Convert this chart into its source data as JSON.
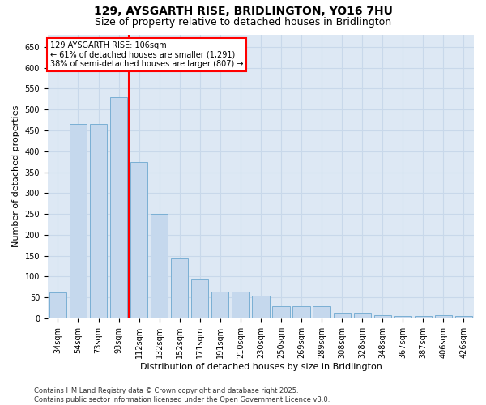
{
  "title1": "129, AYSGARTH RISE, BRIDLINGTON, YO16 7HU",
  "title2": "Size of property relative to detached houses in Bridlington",
  "xlabel": "Distribution of detached houses by size in Bridlington",
  "ylabel": "Number of detached properties",
  "categories": [
    "34sqm",
    "54sqm",
    "73sqm",
    "93sqm",
    "112sqm",
    "132sqm",
    "152sqm",
    "171sqm",
    "191sqm",
    "210sqm",
    "230sqm",
    "250sqm",
    "269sqm",
    "289sqm",
    "308sqm",
    "328sqm",
    "348sqm",
    "367sqm",
    "387sqm",
    "406sqm",
    "426sqm"
  ],
  "values": [
    62,
    465,
    465,
    530,
    375,
    250,
    143,
    93,
    63,
    63,
    55,
    28,
    28,
    28,
    11,
    11,
    8,
    6,
    5,
    8,
    5
  ],
  "bar_color": "#c5d8ed",
  "bar_edge_color": "#7aafd4",
  "vline_color": "red",
  "vline_x_index": 4,
  "annotation_title": "129 AYSGARTH RISE: 106sqm",
  "annotation_line1": "← 61% of detached houses are smaller (1,291)",
  "annotation_line2": "38% of semi-detached houses are larger (807) →",
  "annotation_box_color": "red",
  "annotation_fill": "white",
  "ylim": [
    0,
    680
  ],
  "yticks": [
    0,
    50,
    100,
    150,
    200,
    250,
    300,
    350,
    400,
    450,
    500,
    550,
    600,
    650
  ],
  "grid_color": "#c8d8ea",
  "plot_bg_color": "#dde8f4",
  "fig_bg_color": "#ffffff",
  "footer1": "Contains HM Land Registry data © Crown copyright and database right 2025.",
  "footer2": "Contains public sector information licensed under the Open Government Licence v3.0.",
  "title1_fontsize": 10,
  "title2_fontsize": 9,
  "axis_label_fontsize": 8,
  "tick_fontsize": 7,
  "annotation_fontsize": 7,
  "footer_fontsize": 6
}
